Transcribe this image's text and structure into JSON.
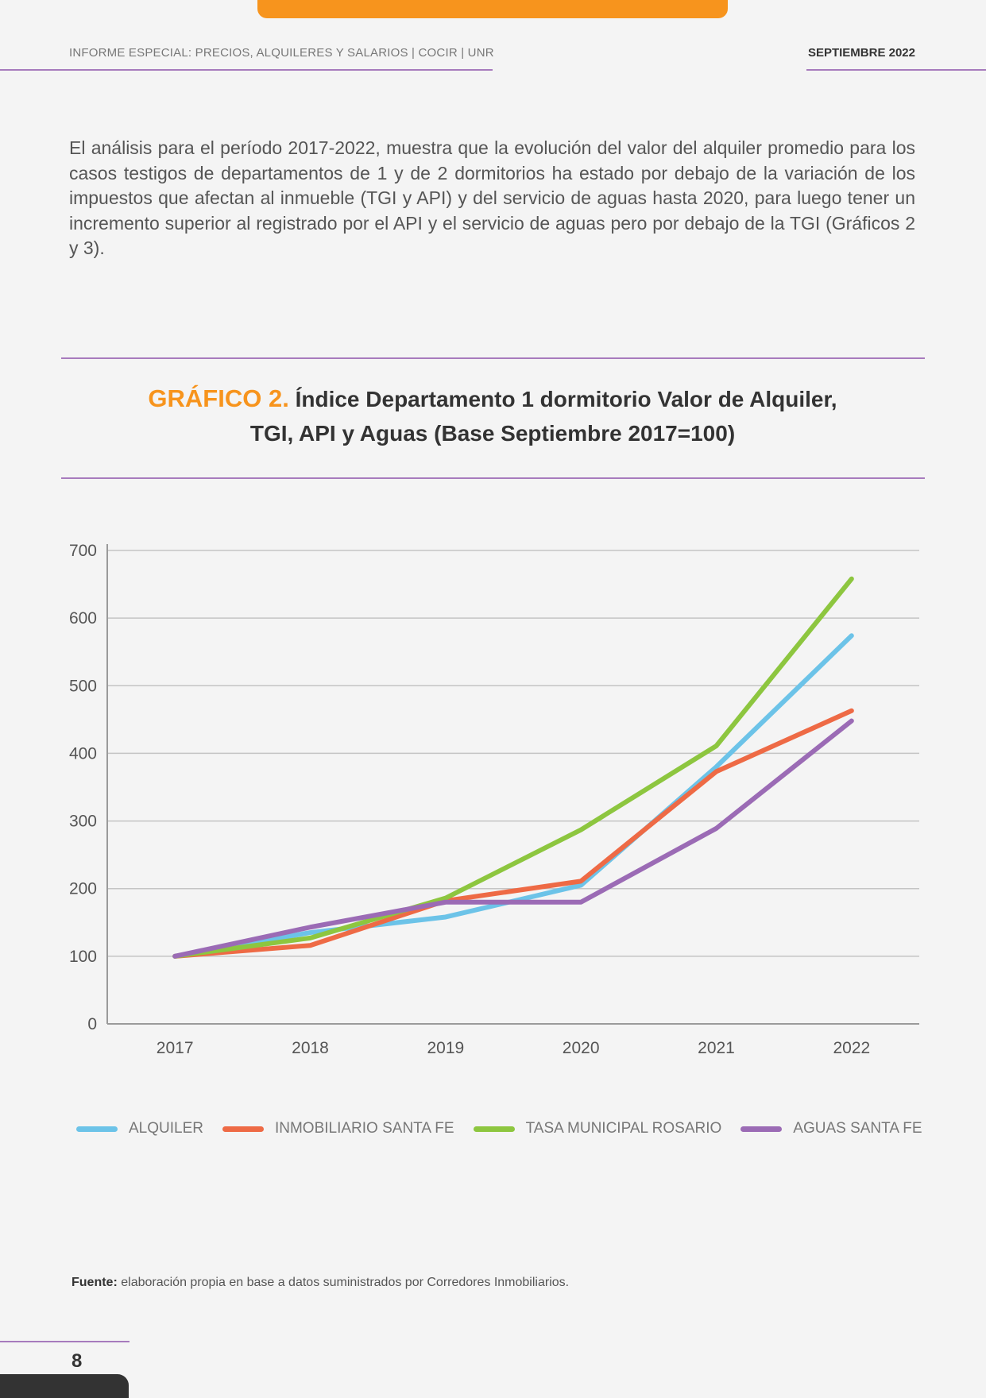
{
  "header": {
    "report_title": "INFORME ESPECIAL: PRECIOS, ALQUILERES Y SALARIOS | COCIR | UNR",
    "date": "SEPTIEMBRE 2022"
  },
  "body_text": "El análisis para el período 2017-2022, muestra que la evolución del valor del alquiler promedio para los casos testigos de departamentos de 1 y de 2 dormitorios ha estado por debajo de la variación de los impuestos que afectan al inmueble (TGI y API) y del servicio de aguas hasta 2020, para luego tener un incremento superior al registrado por el API y el servicio de aguas pero por debajo de la TGI (Gráficos 2 y 3).",
  "chart_title": {
    "number": "GRÁFICO 2.",
    "line1": "Índice Departamento 1 dormitorio Valor de Alquiler,",
    "line2": "TGI, API y Aguas (Base Septiembre 2017=100)"
  },
  "colors": {
    "accent_orange": "#f7941d",
    "rule_purple": "#a77bbd"
  },
  "chart_data": {
    "type": "line",
    "title": "GRÁFICO 2. Índice Departamento 1 dormitorio Valor de Alquiler, TGI, API y Aguas (Base Septiembre 2017=100)",
    "xlabel": "",
    "ylabel": "",
    "categories": [
      "2017",
      "2018",
      "2019",
      "2020",
      "2021",
      "2022"
    ],
    "ylim": [
      0,
      700
    ],
    "yticks": [
      "0",
      "100",
      "200",
      "300",
      "400",
      "500",
      "600",
      "700"
    ],
    "grid": true,
    "legend_position": "bottom",
    "series": [
      {
        "name": "ALQUILER",
        "color": "#6cc3e8",
        "values": [
          100,
          135,
          158,
          205,
          380,
          574
        ]
      },
      {
        "name": "INMOBILIARIO SANTA FE",
        "color": "#ee6a45",
        "values": [
          100,
          116,
          182,
          211,
          373,
          463
        ]
      },
      {
        "name": "TASA MUNICIPAL ROSARIO",
        "color": "#8dc63f",
        "values": [
          100,
          127,
          186,
          287,
          411,
          658
        ]
      },
      {
        "name": "AGUAS SANTA FE",
        "color": "#9b6bb5",
        "values": [
          100,
          143,
          180,
          180,
          289,
          448
        ]
      }
    ]
  },
  "source": {
    "label": "Fuente:",
    "text": "elaboración propia en base a datos suministrados por Corredores Inmobiliarios."
  },
  "page_number": "8"
}
